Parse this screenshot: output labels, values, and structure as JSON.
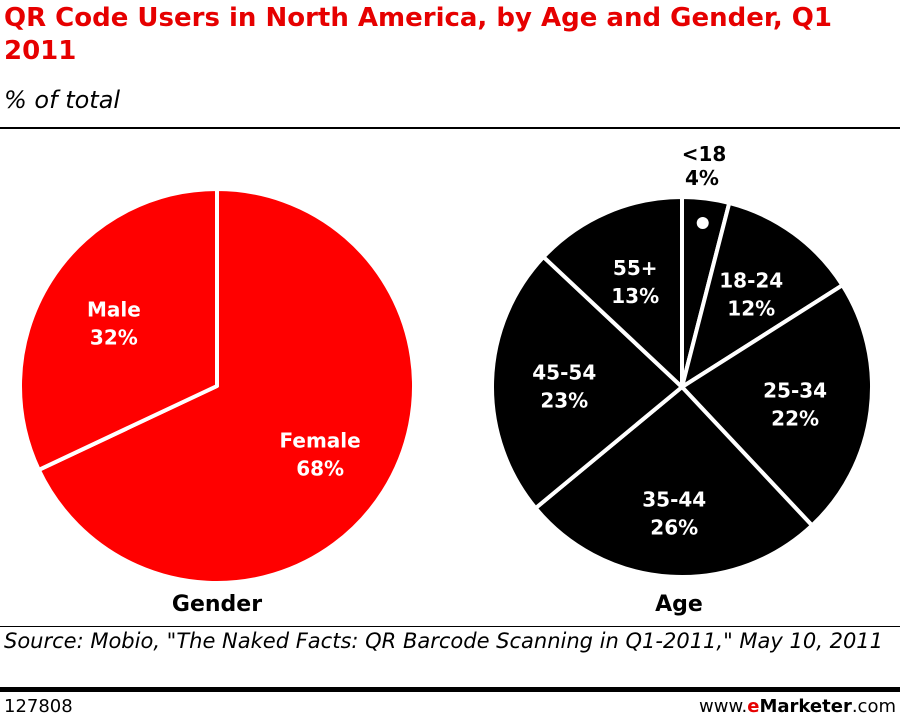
{
  "title": "QR Code Users in North America, by Age and Gender, Q1 2011",
  "subtitle": "% of total",
  "source": "Source: Mobio, \"The Naked Facts: QR Barcode Scanning in Q1-2011,\" May 10, 2011",
  "chart_id": "127808",
  "branding": {
    "prefix": "www.",
    "e": "e",
    "name": "Marketer",
    "suffix": ".com"
  },
  "colors": {
    "accent": "#e60000",
    "gender_fill": "#ff0000",
    "age_fill": "#000000",
    "separator": "#ffffff"
  },
  "chart_data": [
    {
      "type": "pie",
      "title": "Gender",
      "unit": "%",
      "slices": [
        {
          "label": "Female",
          "value": 68,
          "display": "68%"
        },
        {
          "label": "Male",
          "value": 32,
          "display": "32%"
        }
      ]
    },
    {
      "type": "pie",
      "title": "Age",
      "unit": "%",
      "slices": [
        {
          "label": "<18",
          "value": 4,
          "display": "4%"
        },
        {
          "label": "18-24",
          "value": 12,
          "display": "12%"
        },
        {
          "label": "25-34",
          "value": 22,
          "display": "22%"
        },
        {
          "label": "35-44",
          "value": 26,
          "display": "26%"
        },
        {
          "label": "45-54",
          "value": 23,
          "display": "23%"
        },
        {
          "label": "55+",
          "value": 13,
          "display": "13%"
        }
      ]
    }
  ]
}
